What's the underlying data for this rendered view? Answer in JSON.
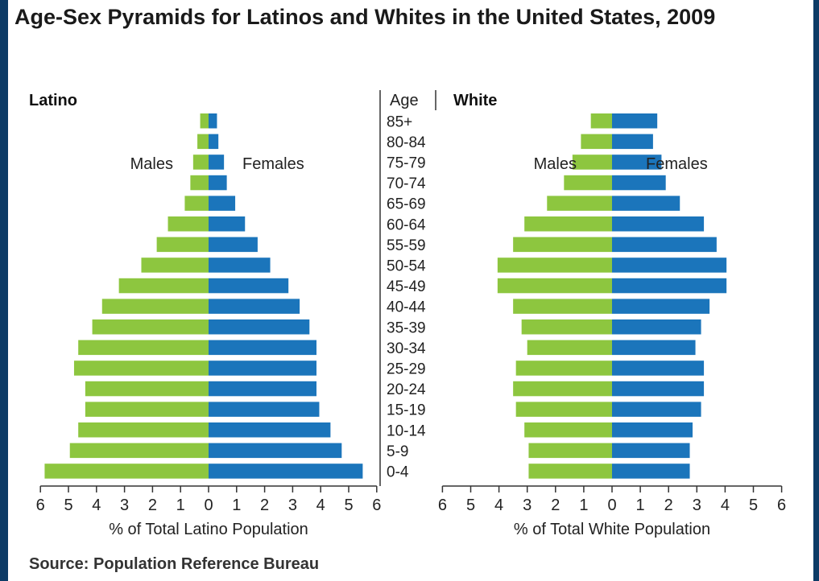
{
  "title": "Age-Sex Pyramids for Latinos and Whites in the United States, 2009",
  "source": "Source: Population Reference Bureau",
  "colors": {
    "male": "#8dc63f",
    "female": "#1b75bb",
    "axis": "#333333",
    "text": "#222222"
  },
  "chart_data": {
    "type": "bar",
    "orientation": "horizontal-pyramid",
    "age_axis_label": "Age",
    "age_groups": [
      "85+",
      "80-84",
      "75-79",
      "70-74",
      "65-69",
      "60-64",
      "55-59",
      "50-54",
      "45-49",
      "40-44",
      "35-39",
      "30-34",
      "25-29",
      "20-24",
      "15-19",
      "10-14",
      "5-9",
      "0-4"
    ],
    "panels": [
      {
        "title": "Latino",
        "xlabel": "% of Total Latino Population",
        "xlim": [
          -6,
          6
        ],
        "ticks": [
          "6",
          "5",
          "4",
          "3",
          "2",
          "1",
          "0",
          "1",
          "2",
          "3",
          "4",
          "5",
          "6"
        ],
        "series": [
          {
            "name": "Males",
            "values": [
              0.3,
              0.4,
              0.55,
              0.65,
              0.85,
              1.45,
              1.85,
              2.4,
              3.2,
              3.8,
              4.15,
              4.65,
              4.8,
              4.4,
              4.4,
              4.65,
              4.95,
              5.85
            ]
          },
          {
            "name": "Females",
            "values": [
              0.3,
              0.35,
              0.55,
              0.65,
              0.95,
              1.3,
              1.75,
              2.2,
              2.85,
              3.25,
              3.6,
              3.85,
              3.85,
              3.85,
              3.95,
              4.35,
              4.75,
              5.5
            ]
          }
        ]
      },
      {
        "title": "White",
        "xlabel": "% of Total White Population",
        "xlim": [
          -6,
          6
        ],
        "ticks": [
          "6",
          "5",
          "4",
          "3",
          "2",
          "1",
          "0",
          "1",
          "2",
          "3",
          "4",
          "5",
          "6"
        ],
        "series": [
          {
            "name": "Males",
            "values": [
              0.75,
              1.1,
              1.4,
              1.7,
              2.3,
              3.1,
              3.5,
              4.05,
              4.05,
              3.5,
              3.2,
              3.0,
              3.4,
              3.5,
              3.4,
              3.1,
              2.95,
              2.95
            ]
          },
          {
            "name": "Females",
            "values": [
              1.6,
              1.45,
              1.75,
              1.9,
              2.4,
              3.25,
              3.7,
              4.05,
              4.05,
              3.45,
              3.15,
              2.95,
              3.25,
              3.25,
              3.15,
              2.85,
              2.75,
              2.75
            ]
          }
        ]
      }
    ]
  }
}
